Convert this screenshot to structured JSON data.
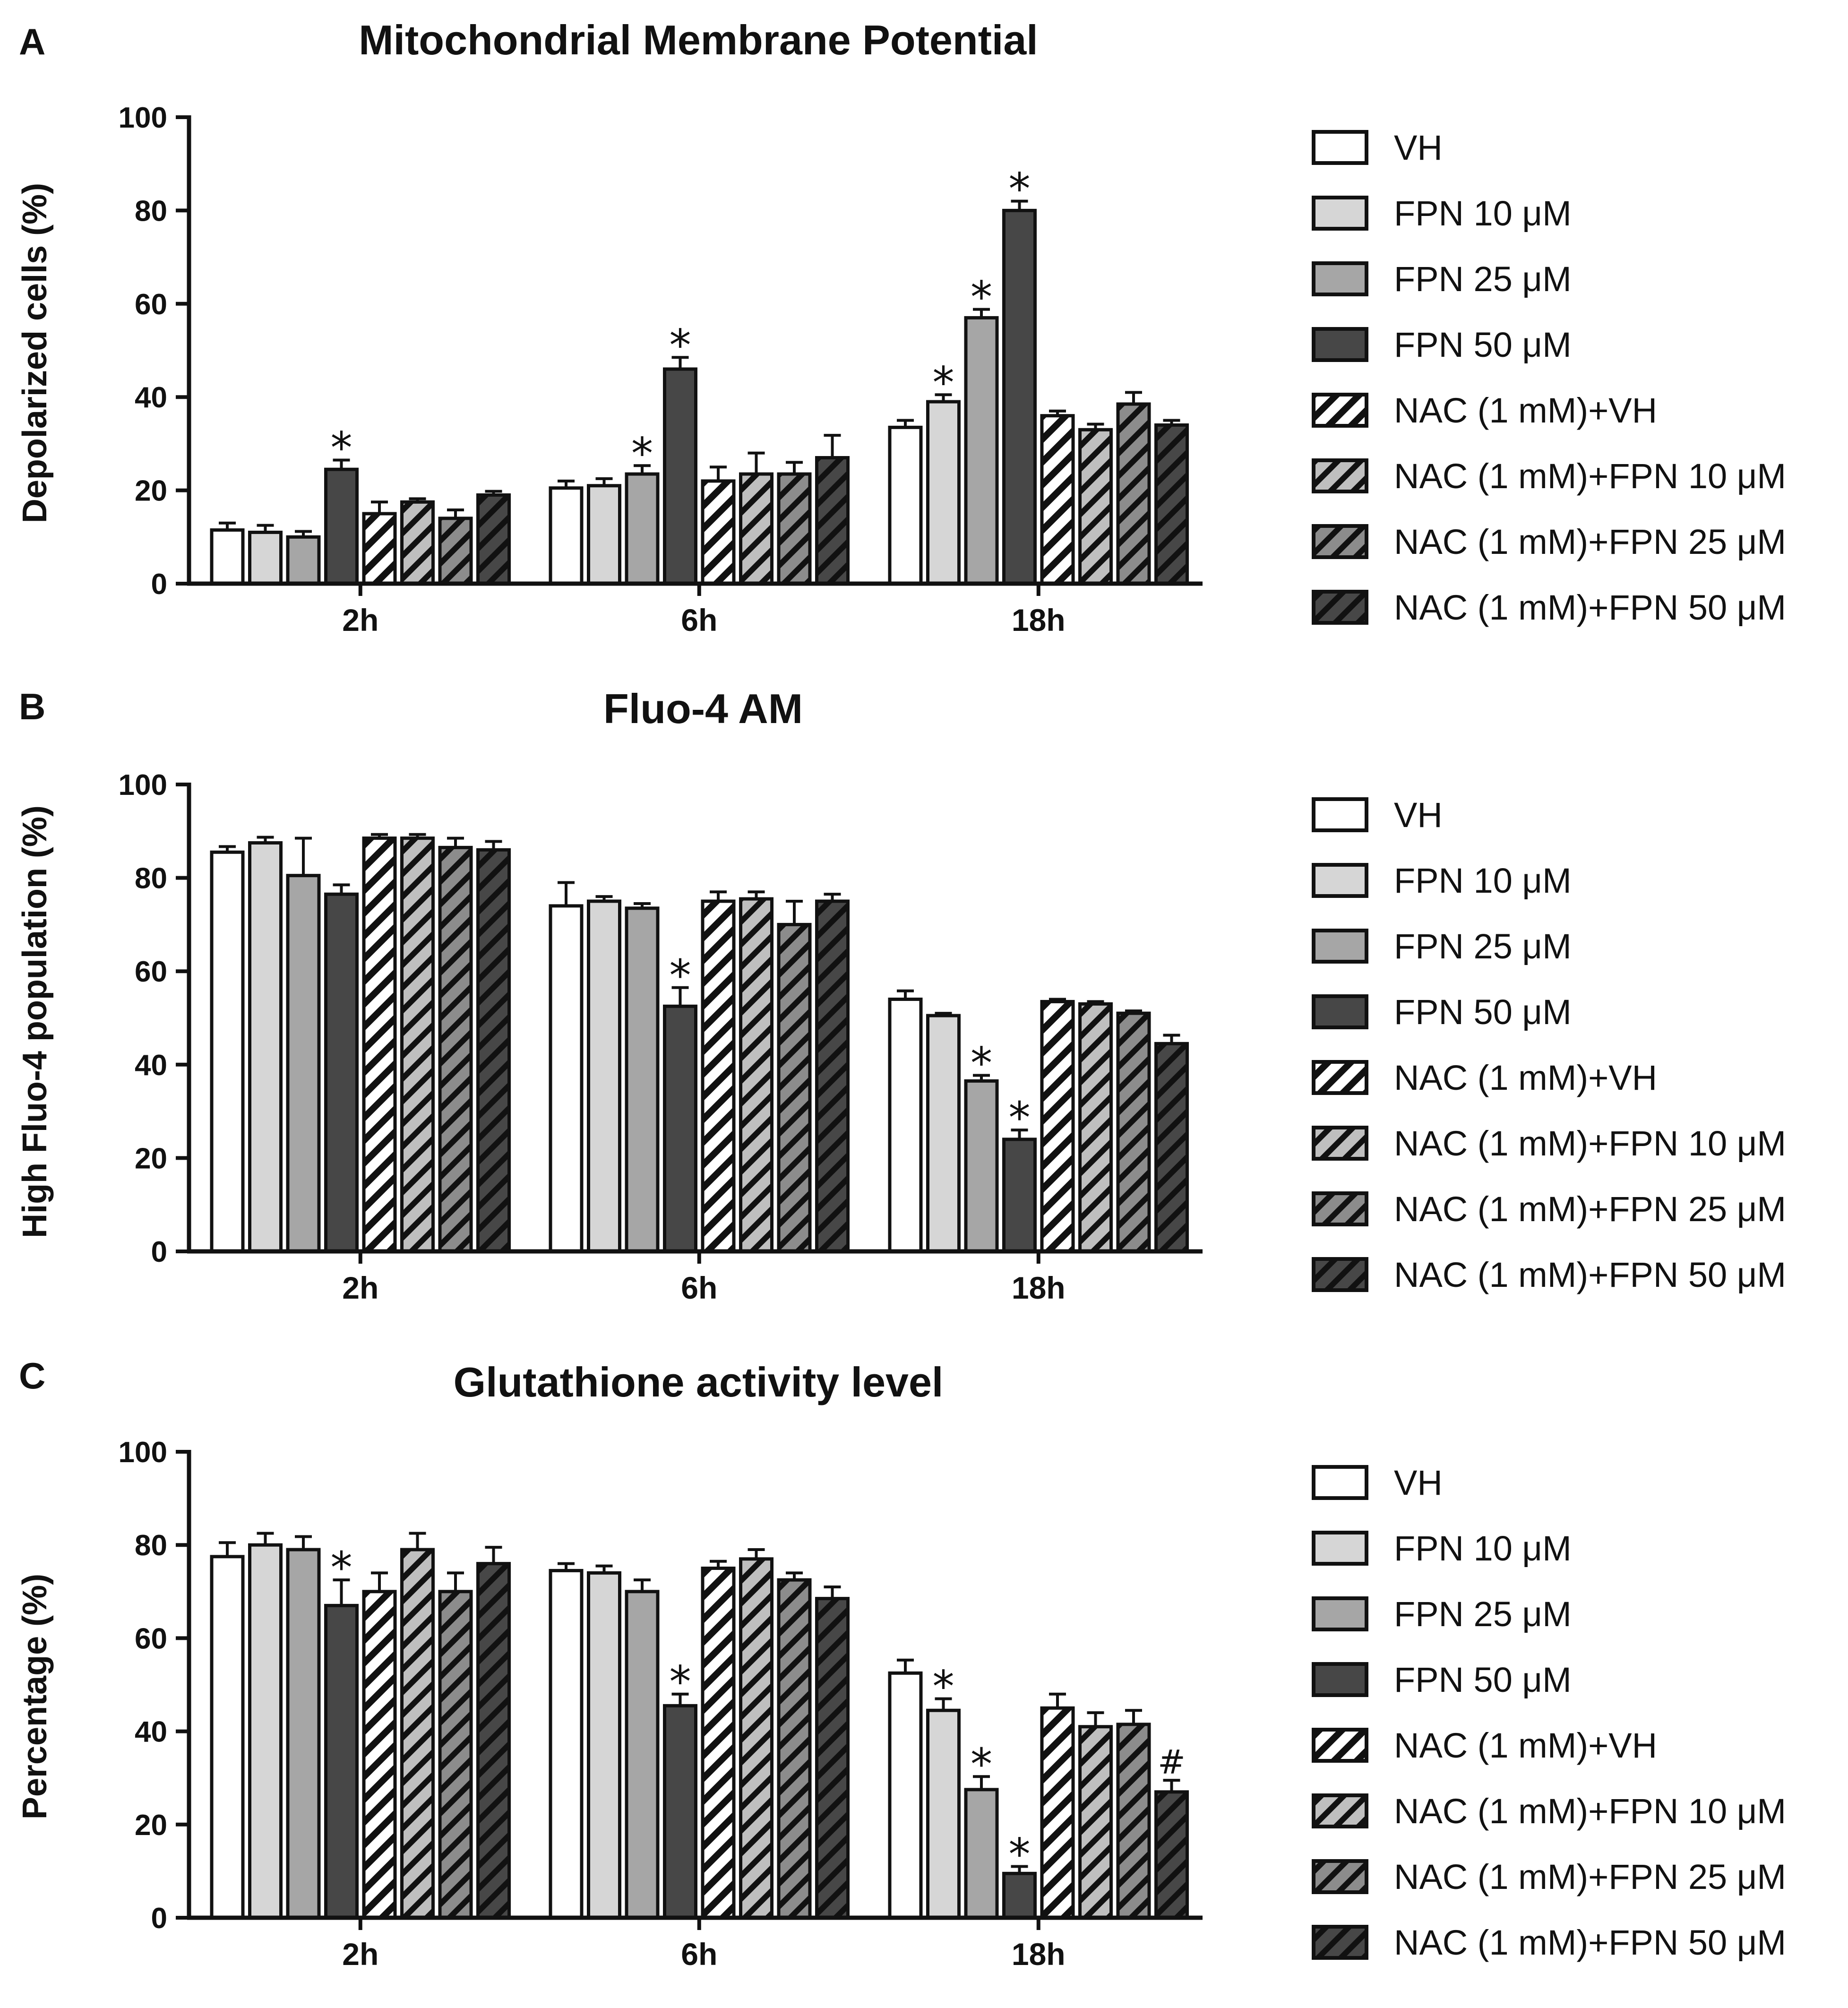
{
  "chart_data": [
    {
      "type": "bar",
      "panel": "A",
      "title": "Mitochondrial Membrane Potential",
      "ylabel": "Depolarized cells (%)",
      "xlabel": "",
      "ylim": [
        0,
        100
      ],
      "yticks": [
        0,
        20,
        40,
        60,
        80,
        100
      ],
      "categories": [
        "2h",
        "6h",
        "18h"
      ],
      "legend": [
        "VH",
        "FPN 10 μM",
        "FPN 25 μM",
        "FPN 50 μM",
        "NAC (1 mM)+VH",
        "NAC (1 mM)+FPN 10 μM",
        "NAC (1 mM)+FPN 25 μM",
        "NAC (1 mM)+FPN 50 μM"
      ],
      "series": [
        {
          "name": "VH",
          "values": [
            11.5,
            20.5,
            33.5
          ],
          "errors": [
            1.5,
            1.5,
            1.5
          ],
          "marks": [
            "",
            "",
            ""
          ]
        },
        {
          "name": "FPN 10 μM",
          "values": [
            11.0,
            21.0,
            39.0
          ],
          "errors": [
            1.5,
            1.5,
            1.5
          ],
          "marks": [
            "",
            "",
            "*"
          ]
        },
        {
          "name": "FPN 25 μM",
          "values": [
            10.0,
            23.5,
            57.0
          ],
          "errors": [
            1.2,
            1.8,
            1.8
          ],
          "marks": [
            "",
            "*",
            "*"
          ]
        },
        {
          "name": "FPN 50 μM",
          "values": [
            24.5,
            46.0,
            80.0
          ],
          "errors": [
            2.0,
            2.5,
            2.0
          ],
          "marks": [
            "*",
            "*",
            "*"
          ]
        },
        {
          "name": "NAC (1 mM)+VH",
          "values": [
            15.0,
            22.0,
            36.0
          ],
          "errors": [
            2.5,
            3.0,
            1.0
          ],
          "marks": [
            "",
            "",
            ""
          ]
        },
        {
          "name": "NAC (1 mM)+FPN 10 μM",
          "values": [
            17.5,
            23.5,
            33.0
          ],
          "errors": [
            0.7,
            4.5,
            1.2
          ],
          "marks": [
            "",
            "",
            ""
          ]
        },
        {
          "name": "NAC (1 mM)+FPN 25 μM",
          "values": [
            14.0,
            23.5,
            38.5
          ],
          "errors": [
            1.8,
            2.5,
            2.5
          ],
          "marks": [
            "",
            "",
            ""
          ]
        },
        {
          "name": "NAC (1 mM)+FPN 50 μM",
          "values": [
            19.0,
            27.0,
            34.0
          ],
          "errors": [
            0.8,
            4.8,
            1.0
          ],
          "marks": [
            "",
            "",
            ""
          ]
        }
      ]
    },
    {
      "type": "bar",
      "panel": "B",
      "title": "Fluo-4 AM",
      "ylabel": "High Fluo-4 population (%)",
      "xlabel": "",
      "ylim": [
        0,
        100
      ],
      "yticks": [
        0,
        20,
        40,
        60,
        80,
        100
      ],
      "categories": [
        "2h",
        "6h",
        "18h"
      ],
      "legend": [
        "VH",
        "FPN 10 μM",
        "FPN 25 μM",
        "FPN 50 μM",
        "NAC (1 mM)+VH",
        "NAC (1 mM)+FPN 10 μM",
        "NAC (1 mM)+FPN 25 μM",
        "NAC (1 mM)+FPN 50 μM"
      ],
      "series": [
        {
          "name": "VH",
          "values": [
            85.5,
            74.0,
            54.0
          ],
          "errors": [
            1.2,
            5.0,
            1.8
          ],
          "marks": [
            "",
            "",
            ""
          ]
        },
        {
          "name": "FPN 10 μM",
          "values": [
            87.5,
            75.0,
            50.5
          ],
          "errors": [
            1.2,
            1.0,
            0.5
          ],
          "marks": [
            "",
            "",
            ""
          ]
        },
        {
          "name": "FPN 25 μM",
          "values": [
            80.5,
            73.5,
            36.5
          ],
          "errors": [
            8.0,
            1.0,
            1.2
          ],
          "marks": [
            "",
            "",
            "*"
          ]
        },
        {
          "name": "FPN 50 μM",
          "values": [
            76.5,
            52.5,
            24.0
          ],
          "errors": [
            2.0,
            4.0,
            2.0
          ],
          "marks": [
            "",
            "*",
            "*"
          ]
        },
        {
          "name": "NAC (1 mM)+VH",
          "values": [
            88.5,
            75.0,
            53.5
          ],
          "errors": [
            0.8,
            2.0,
            0.5
          ],
          "marks": [
            "",
            "",
            ""
          ]
        },
        {
          "name": "NAC (1 mM)+FPN 10 μM",
          "values": [
            88.5,
            75.5,
            53.0
          ],
          "errors": [
            0.8,
            1.5,
            0.5
          ],
          "marks": [
            "",
            "",
            ""
          ]
        },
        {
          "name": "NAC (1 mM)+FPN 25 μM",
          "values": [
            86.5,
            70.0,
            51.0
          ],
          "errors": [
            2.0,
            5.0,
            0.5
          ],
          "marks": [
            "",
            "",
            ""
          ]
        },
        {
          "name": "NAC (1 mM)+FPN 50 μM",
          "values": [
            86.0,
            75.0,
            44.5
          ],
          "errors": [
            1.8,
            1.5,
            1.8
          ],
          "marks": [
            "",
            "",
            ""
          ]
        }
      ]
    },
    {
      "type": "bar",
      "panel": "C",
      "title": "Glutathione activity level",
      "ylabel": "Percentage (%)",
      "xlabel": "",
      "ylim": [
        0,
        100
      ],
      "yticks": [
        0,
        20,
        40,
        60,
        80,
        100
      ],
      "categories": [
        "2h",
        "6h",
        "18h"
      ],
      "legend": [
        "VH",
        "FPN 10 μM",
        "FPN 25 μM",
        "FPN 50 μM",
        "NAC (1 mM)+VH",
        "NAC (1 mM)+FPN 10 μM",
        "NAC (1 mM)+FPN 25 μM",
        "NAC (1 mM)+FPN 50 μM"
      ],
      "series": [
        {
          "name": "VH",
          "values": [
            77.5,
            74.5,
            52.5
          ],
          "errors": [
            3.0,
            1.5,
            2.8
          ],
          "marks": [
            "",
            "",
            ""
          ]
        },
        {
          "name": "FPN 10 μM",
          "values": [
            80.0,
            74.0,
            44.5
          ],
          "errors": [
            2.5,
            1.5,
            2.5
          ],
          "marks": [
            "",
            "",
            "*"
          ]
        },
        {
          "name": "FPN 25 μM",
          "values": [
            79.0,
            70.0,
            27.5
          ],
          "errors": [
            2.8,
            2.5,
            2.8
          ],
          "marks": [
            "",
            "",
            "*"
          ]
        },
        {
          "name": "FPN 50 μM",
          "values": [
            67.0,
            45.5,
            9.5
          ],
          "errors": [
            5.5,
            2.5,
            1.5
          ],
          "marks": [
            "*",
            "*",
            "*"
          ]
        },
        {
          "name": "NAC (1 mM)+VH",
          "values": [
            70.0,
            75.0,
            45.0
          ],
          "errors": [
            4.0,
            1.5,
            3.0
          ],
          "marks": [
            "",
            "",
            ""
          ]
        },
        {
          "name": "NAC (1 mM)+FPN 10 μM",
          "values": [
            79.0,
            77.0,
            41.0
          ],
          "errors": [
            3.5,
            2.0,
            3.0
          ],
          "marks": [
            "",
            "",
            ""
          ]
        },
        {
          "name": "NAC (1 mM)+FPN 25 μM",
          "values": [
            70.0,
            72.5,
            41.5
          ],
          "errors": [
            4.0,
            1.5,
            3.0
          ],
          "marks": [
            "",
            "",
            ""
          ]
        },
        {
          "name": "NAC (1 mM)+FPN 50 μM",
          "values": [
            76.0,
            68.5,
            27.0
          ],
          "errors": [
            3.5,
            2.5,
            2.5
          ],
          "marks": [
            "",
            "",
            "#"
          ]
        }
      ]
    }
  ],
  "colors": {
    "VH": "#ffffff",
    "FPN 10 μM": "#d6d6d6",
    "FPN 25 μM": "#a6a6a6",
    "FPN 50 μM": "#474747",
    "stroke": "#111111",
    "hatch_light": "#ffffff",
    "hatch_10": "#bfbfbf",
    "hatch_25": "#8c8c8c",
    "hatch_50": "#474747"
  }
}
